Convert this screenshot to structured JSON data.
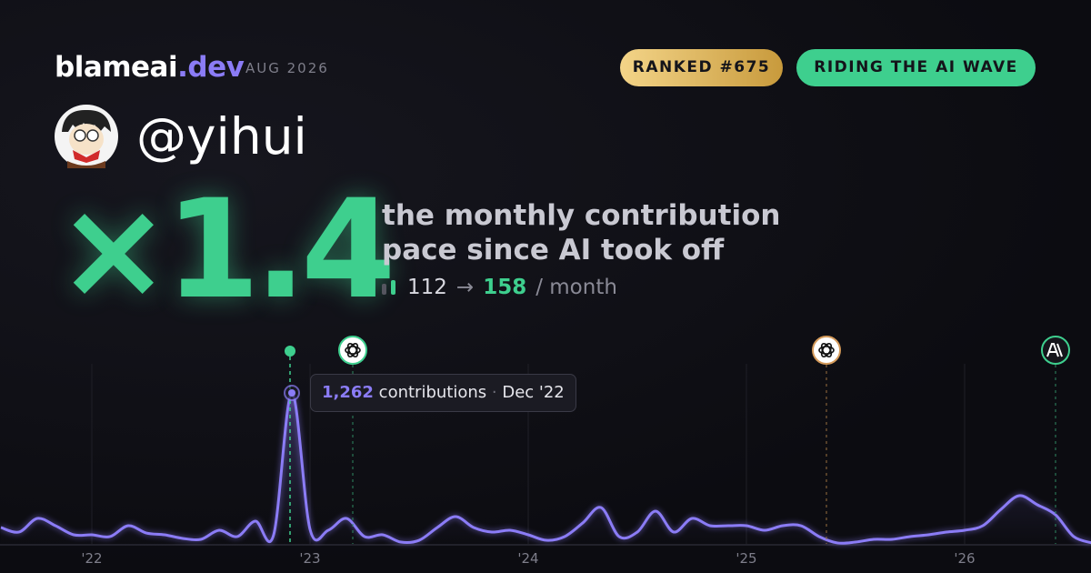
{
  "header": {
    "brand": "blameai",
    "brand_suffix": ".dev",
    "date": "AUG 2026",
    "badges": [
      "RANKED #675",
      "RIDING THE AI WAVE"
    ]
  },
  "profile": {
    "handle": "@yihui"
  },
  "headline": {
    "multiplier": "×1.4",
    "description": [
      "the monthly contribution",
      "pace since AI took off"
    ],
    "before": "112",
    "arrow": "→",
    "after": "158",
    "unit": "/ month"
  },
  "tooltip": {
    "value": "1,262",
    "label": "contributions",
    "separator": "·",
    "date": "Dec '22"
  },
  "chart_data": {
    "type": "line",
    "color": "#8b7cf6",
    "categories": [
      null,
      null,
      null,
      null,
      null,
      "'22",
      null,
      null,
      null,
      null,
      null,
      null,
      null,
      null,
      null,
      null,
      null,
      "'23",
      null,
      null,
      null,
      null,
      null,
      null,
      null,
      null,
      null,
      null,
      null,
      "'24",
      null,
      null,
      null,
      null,
      null,
      null,
      null,
      null,
      null,
      null,
      null,
      "'25",
      null,
      null,
      null,
      null,
      null,
      null,
      null,
      null,
      null,
      null,
      null,
      "'26",
      null,
      null,
      null,
      null,
      null,
      null,
      null
    ],
    "values": [
      137,
      99,
      213,
      152,
      76,
      76,
      61,
      152,
      91,
      76,
      46,
      38,
      114,
      61,
      190,
      76,
      1262,
      122,
      114,
      213,
      61,
      76,
      15,
      30,
      137,
      228,
      137,
      99,
      114,
      76,
      30,
      61,
      175,
      304,
      61,
      99,
      274,
      99,
      213,
      152,
      152,
      152,
      114,
      152,
      152,
      61,
      8,
      15,
      38,
      38,
      61,
      76,
      99,
      114,
      152,
      289,
      403,
      327,
      243,
      61,
      8
    ],
    "ylim": [
      0,
      1300
    ],
    "grid": true
  }
}
